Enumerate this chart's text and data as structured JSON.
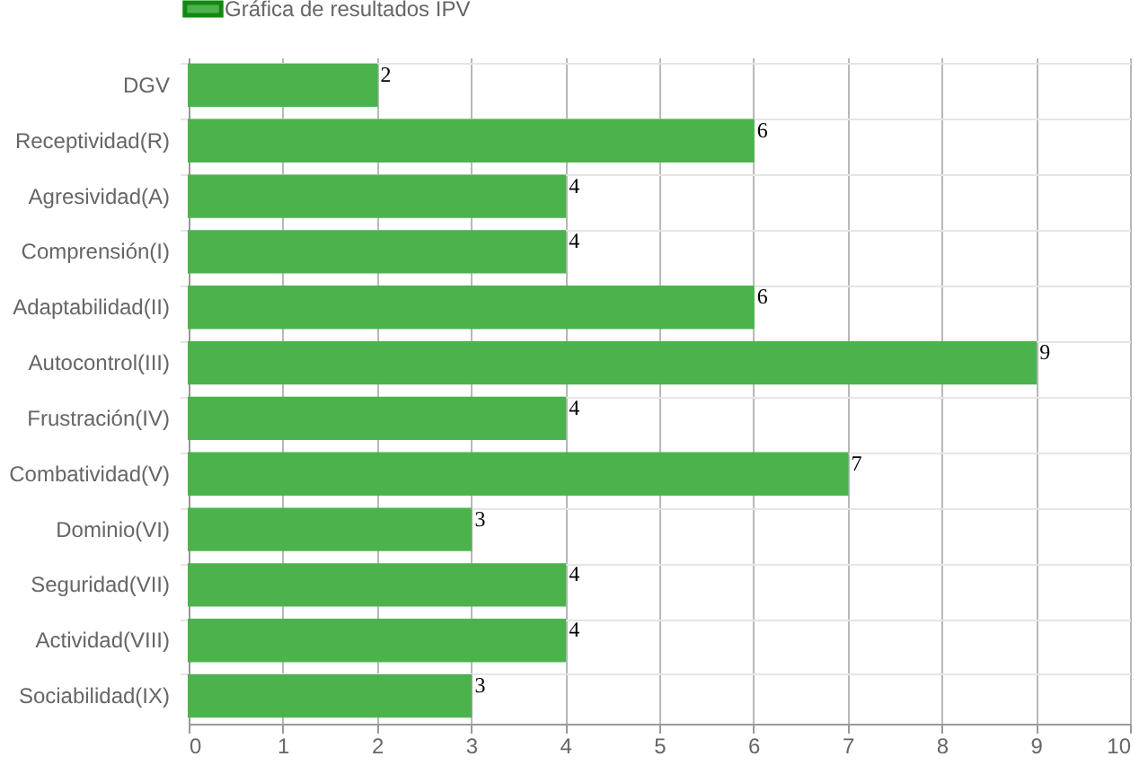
{
  "chart_data": {
    "type": "bar",
    "orientation": "horizontal",
    "categories": [
      "DGV",
      "Receptividad(R)",
      "Agresividad(A)",
      "Comprensión(I)",
      "Adaptabilidad(II)",
      "Autocontrol(III)",
      "Frustración(IV)",
      "Combatividad(V)",
      "Dominio(VI)",
      "Seguridad(VII)",
      "Actividad(VIII)",
      "Sociabilidad(IX)"
    ],
    "series": [
      {
        "name": "Gráfica de resultados IPV",
        "color": "#4cb34c",
        "values": [
          2,
          6,
          4,
          4,
          6,
          9,
          4,
          7,
          3,
          4,
          4,
          3
        ]
      }
    ],
    "xlim": [
      0,
      10
    ],
    "xticks": [
      0,
      1,
      2,
      3,
      4,
      5,
      6,
      7,
      8,
      9,
      10
    ],
    "grid": true,
    "legend": "top",
    "data_labels": true
  }
}
